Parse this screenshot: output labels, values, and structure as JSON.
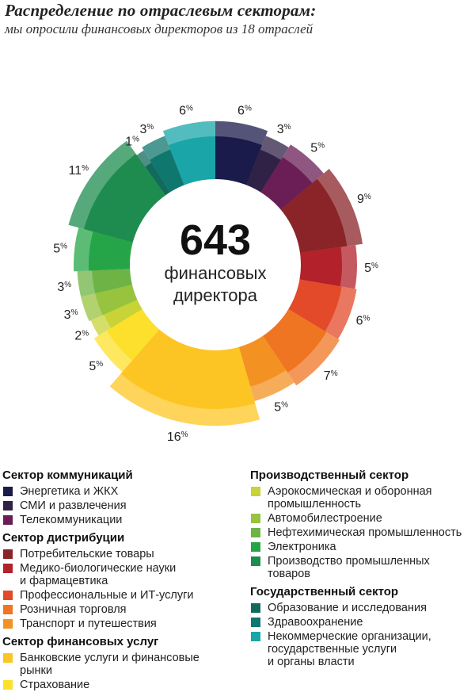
{
  "header": {
    "title": "Распределение по отраслевым секторам:",
    "subtitle": "мы опросили финансовых директоров из 18 отраслей"
  },
  "center": {
    "number": "643",
    "line1": "финансовых",
    "line2": "директора"
  },
  "chart_data": {
    "type": "pie",
    "variant": "donut",
    "unit": "%",
    "slices": [
      {
        "label": "Энергетика и ЖКХ",
        "value": 6,
        "color": "#1b1b4b"
      },
      {
        "label": "СМИ и развлечения",
        "value": 3,
        "color": "#2f2246"
      },
      {
        "label": "Телекоммуникации",
        "value": 5,
        "color": "#6a1e55"
      },
      {
        "label": "Потребительские товары",
        "value": 9,
        "color": "#8a2428"
      },
      {
        "label": "Медико-биологические науки и фармацевтика",
        "value": 5,
        "color": "#b3222b"
      },
      {
        "label": "Профессиональные и ИТ-услуги",
        "value": 6,
        "color": "#e34a2a"
      },
      {
        "label": "Розничная торговля",
        "value": 7,
        "color": "#ef7523"
      },
      {
        "label": "Транспорт и путешествия",
        "value": 5,
        "color": "#f39223"
      },
      {
        "label": "Банковские услуги и финансовые рынки",
        "value": 16,
        "color": "#fdc523"
      },
      {
        "label": "Страхование",
        "value": 5,
        "color": "#fde02b"
      },
      {
        "label": "Аэрокосмическая и оборонная промышленность",
        "value": 2,
        "color": "#c7d336"
      },
      {
        "label": "Автомобилестроение",
        "value": 3,
        "color": "#97c33f"
      },
      {
        "label": "Нефтехимическая промышленность",
        "value": 3,
        "color": "#6db346"
      },
      {
        "label": "Электроника",
        "value": 5,
        "color": "#25a547"
      },
      {
        "label": "Производство промышленных товаров",
        "value": 11,
        "color": "#1e8c4f"
      },
      {
        "label": "Образование и исследования",
        "value": 1,
        "color": "#126a5c"
      },
      {
        "label": "Здравоохранение",
        "value": 3,
        "color": "#10776f"
      },
      {
        "label": "Некоммерческие организации, государственные услуги и органы власти",
        "value": 6,
        "color": "#1aa5a8"
      }
    ],
    "legend_placement": "bottom"
  },
  "legend": {
    "left": [
      {
        "title": "Сектор коммуникаций",
        "items": [
          {
            "label": "Энергетика и ЖКХ",
            "color": "#1b1b4b"
          },
          {
            "label": "СМИ и развлечения",
            "color": "#2f2246"
          },
          {
            "label": "Телекоммуникации",
            "color": "#6a1e55"
          }
        ]
      },
      {
        "title": "Сектор дистрибуции",
        "items": [
          {
            "label": "Потребительские товары",
            "color": "#8a2428"
          },
          {
            "label": "Медико-биологические науки\nи фармацевтика",
            "color": "#b3222b"
          },
          {
            "label": "Профессиональные и ИТ-услуги",
            "color": "#e34a2a"
          },
          {
            "label": "Розничная торговля",
            "color": "#ef7523"
          },
          {
            "label": "Транспорт и путешествия",
            "color": "#f39223"
          }
        ]
      },
      {
        "title": "Сектор финансовых услуг",
        "items": [
          {
            "label": "Банковские услуги и финансовые\nрынки",
            "color": "#fdc523"
          },
          {
            "label": "Страхование",
            "color": "#fde02b"
          }
        ]
      }
    ],
    "right": [
      {
        "title": "Производственный сектор",
        "items": [
          {
            "label": "Аэрокосмическая и оборонная\nпромышленность",
            "color": "#c7d336"
          },
          {
            "label": "Автомобилестроение",
            "color": "#97c33f"
          },
          {
            "label": "Нефтехимическая промышленность",
            "color": "#6db346"
          },
          {
            "label": "Электроника",
            "color": "#25a547"
          },
          {
            "label": "Производство промышленных\nтоваров",
            "color": "#1e8c4f"
          }
        ]
      },
      {
        "title": "Государственный сектор",
        "items": [
          {
            "label": "Образование и исследования",
            "color": "#126a5c"
          },
          {
            "label": "Здравоохранение",
            "color": "#10776f"
          },
          {
            "label": "Некоммерческие организации,\nгосударственные услуги\nи органы власти",
            "color": "#1aa5a8"
          }
        ]
      }
    ]
  }
}
